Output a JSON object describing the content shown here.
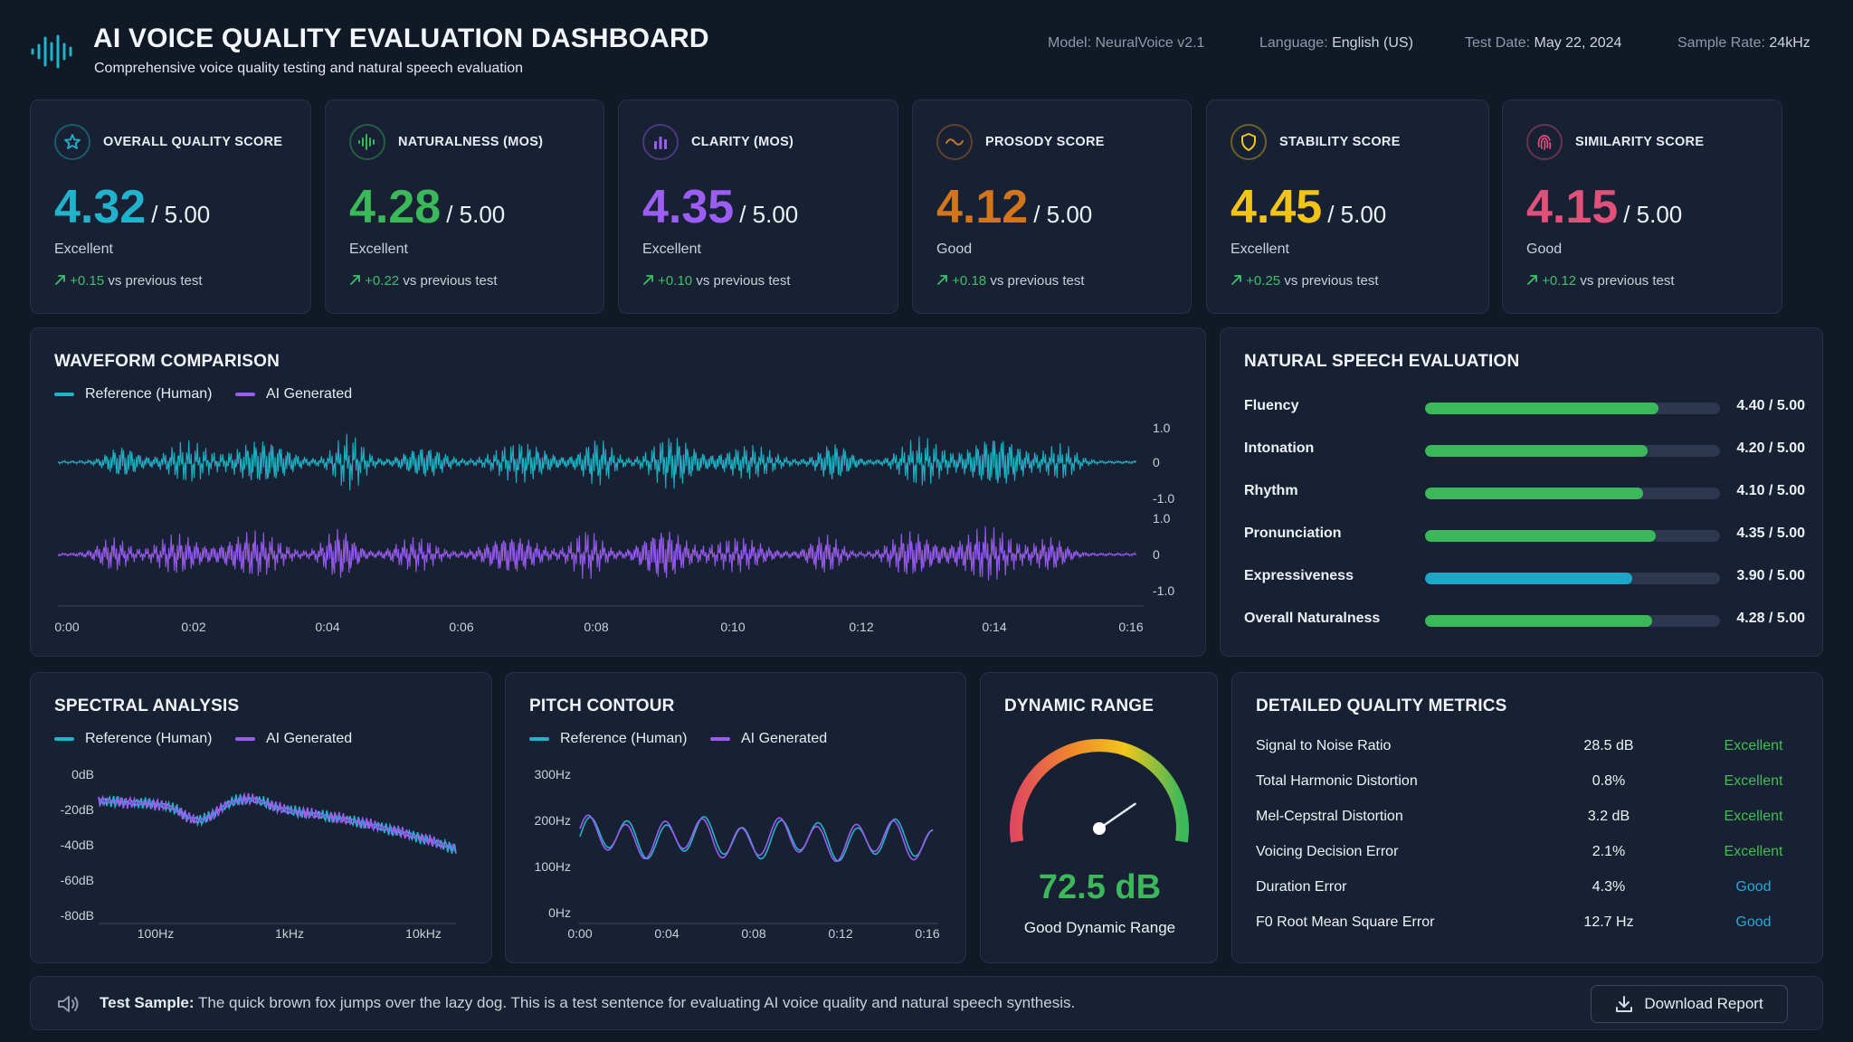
{
  "header": {
    "title": "AI VOICE QUALITY EVALUATION DASHBOARD",
    "subtitle": "Comprehensive voice quality testing and natural speech evaluation",
    "meta": [
      {
        "label": "Model:",
        "value": "NeuralVoice v2.1"
      },
      {
        "label": "Language:",
        "value": "English (US)"
      },
      {
        "label": "Test Date:",
        "value": "May 22, 2024"
      },
      {
        "label": "Sample Rate:",
        "value": "24kHz"
      }
    ]
  },
  "colors": {
    "reference": "#1fb5c9",
    "ai": "#9b5cf2",
    "good_green": "#3bb85a",
    "excellent_text": "#3fbf4f",
    "good_text": "#27a9d6"
  },
  "score_cards": [
    {
      "label": "OVERALL QUALITY SCORE",
      "icon": "star-icon",
      "value": "4.32",
      "max": "/ 5.00",
      "rating": "Excellent",
      "delta": "+0.15",
      "delta_text": "vs previous test",
      "color": "#22b3cc"
    },
    {
      "label": "NATURALNESS (MOS)",
      "icon": "waveform-icon",
      "value": "4.28",
      "max": "/ 5.00",
      "rating": "Excellent",
      "delta": "+0.22",
      "delta_text": "vs previous test",
      "color": "#3bb85a"
    },
    {
      "label": "CLARITY (MOS)",
      "icon": "bar-chart-icon",
      "value": "4.35",
      "max": "/ 5.00",
      "rating": "Excellent",
      "delta": "+0.10",
      "delta_text": "vs previous test",
      "color": "#9c5df2"
    },
    {
      "label": "PROSODY SCORE",
      "icon": "wave-icon",
      "value": "4.12",
      "max": "/ 5.00",
      "rating": "Good",
      "delta": "+0.18",
      "delta_text": "vs previous test",
      "color": "#d2751c"
    },
    {
      "label": "STABILITY SCORE",
      "icon": "shield-icon",
      "value": "4.45",
      "max": "/ 5.00",
      "rating": "Excellent",
      "delta": "+0.25",
      "delta_text": "vs previous test",
      "color": "#f2c418"
    },
    {
      "label": "SIMILARITY SCORE",
      "icon": "fingerprint-icon",
      "value": "4.15",
      "max": "/ 5.00",
      "rating": "Good",
      "delta": "+0.12",
      "delta_text": "vs previous test",
      "color": "#e0517a"
    }
  ],
  "waveform": {
    "title": "WAVEFORM COMPARISON",
    "legend": [
      "Reference (Human)",
      "AI Generated"
    ],
    "y_ticks_top": [
      "1.0",
      "0",
      "-1.0"
    ],
    "y_ticks_bottom": [
      "1.0",
      "0",
      "-1.0"
    ],
    "x_ticks": [
      "0:00",
      "0:02",
      "0:04",
      "0:06",
      "0:08",
      "0:10",
      "0:12",
      "0:14",
      "0:16"
    ]
  },
  "speech_eval": {
    "title": "NATURAL SPEECH EVALUATION",
    "items": [
      {
        "label": "Fluency",
        "value": 4.4,
        "display": "4.40 / 5.00",
        "color": "#3bb85a"
      },
      {
        "label": "Intonation",
        "value": 4.2,
        "display": "4.20 / 5.00",
        "color": "#3bb85a"
      },
      {
        "label": "Rhythm",
        "value": 4.1,
        "display": "4.10 / 5.00",
        "color": "#3bb85a"
      },
      {
        "label": "Pronunciation",
        "value": 4.35,
        "display": "4.35 / 5.00",
        "color": "#3bb85a"
      },
      {
        "label": "Expressiveness",
        "value": 3.9,
        "display": "3.90 / 5.00",
        "color": "#1ea5c8"
      },
      {
        "label": "Overall Naturalness",
        "value": 4.28,
        "display": "4.28 / 5.00",
        "color": "#3bb85a"
      }
    ],
    "max": 5.0
  },
  "spectral": {
    "title": "SPECTRAL ANALYSIS",
    "legend": [
      "Reference (Human)",
      "AI Generated"
    ],
    "y_ticks": [
      "0dB",
      "-20dB",
      "-40dB",
      "-60dB",
      "-80dB"
    ],
    "x_ticks": [
      "100Hz",
      "1kHz",
      "10kHz"
    ]
  },
  "pitch": {
    "title": "PITCH CONTOUR",
    "legend": [
      "Reference (Human)",
      "AI Generated"
    ],
    "y_ticks": [
      "300Hz",
      "200Hz",
      "100Hz",
      "0Hz"
    ],
    "x_ticks": [
      "0:00",
      "0:04",
      "0:08",
      "0:12",
      "0:16"
    ]
  },
  "dynamic_range": {
    "title": "DYNAMIC RANGE",
    "value": "72.5 dB",
    "caption": "Good Dynamic Range",
    "gauge_fraction": 0.78
  },
  "metrics": {
    "title": "DETAILED QUALITY METRICS",
    "rows": [
      {
        "label": "Signal to Noise Ratio",
        "value": "28.5 dB",
        "status": "Excellent"
      },
      {
        "label": "Total Harmonic Distortion",
        "value": "0.8%",
        "status": "Excellent"
      },
      {
        "label": "Mel-Cepstral Distortion",
        "value": "3.2 dB",
        "status": "Excellent"
      },
      {
        "label": "Voicing Decision Error",
        "value": "2.1%",
        "status": "Excellent"
      },
      {
        "label": "Duration Error",
        "value": "4.3%",
        "status": "Good"
      },
      {
        "label": "F0 Root Mean Square Error",
        "value": "12.7 Hz",
        "status": "Good"
      }
    ]
  },
  "footer": {
    "label": "Test Sample:",
    "text": "The quick brown fox jumps over the lazy dog. This is a test sentence for evaluating AI voice quality and natural speech synthesis.",
    "button": "Download Report"
  }
}
